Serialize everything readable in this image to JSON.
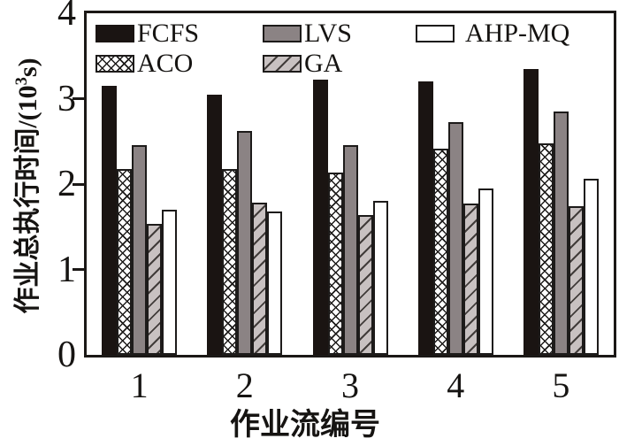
{
  "figure": {
    "xlabel": "作业流编号",
    "ylabel": "作业总执行时间/(10³s)",
    "ylabel_parts": {
      "prefix": "作业总执行时间/(10",
      "sup": "3",
      "suffix": "s)"
    }
  },
  "chart_data": {
    "type": "bar",
    "title": "",
    "xlabel": "作业流编号",
    "ylabel": "作业总执行时间/(10³s)",
    "categories": [
      "1",
      "2",
      "3",
      "4",
      "5"
    ],
    "series": [
      {
        "name": "FCFS",
        "pattern": "solid",
        "color": "#1a1412",
        "values": [
          3.15,
          3.05,
          3.22,
          3.2,
          3.35
        ]
      },
      {
        "name": "ACO",
        "pattern": "crosshatch",
        "color": "#ffffff",
        "values": [
          2.18,
          2.18,
          2.13,
          2.41,
          2.48
        ]
      },
      {
        "name": "LVS",
        "pattern": "solid",
        "color": "#8b8384",
        "values": [
          2.46,
          2.62,
          2.46,
          2.73,
          2.85
        ]
      },
      {
        "name": "GA",
        "pattern": "diagonal",
        "color": "#c8c1c1",
        "values": [
          1.53,
          1.78,
          1.64,
          1.77,
          1.74
        ]
      },
      {
        "name": "AHP-MQ",
        "pattern": "plain",
        "color": "#ffffff",
        "values": [
          1.7,
          1.68,
          1.8,
          1.95,
          2.06
        ]
      }
    ],
    "ylim": [
      0,
      4
    ],
    "yticks": [
      0,
      1,
      2,
      3,
      4
    ],
    "grid": false,
    "legend_position": "top-left-inside",
    "legend_columns": [
      [
        "FCFS",
        "ACO"
      ],
      [
        "LVS",
        "GA"
      ],
      [
        "AHP-MQ"
      ]
    ]
  }
}
